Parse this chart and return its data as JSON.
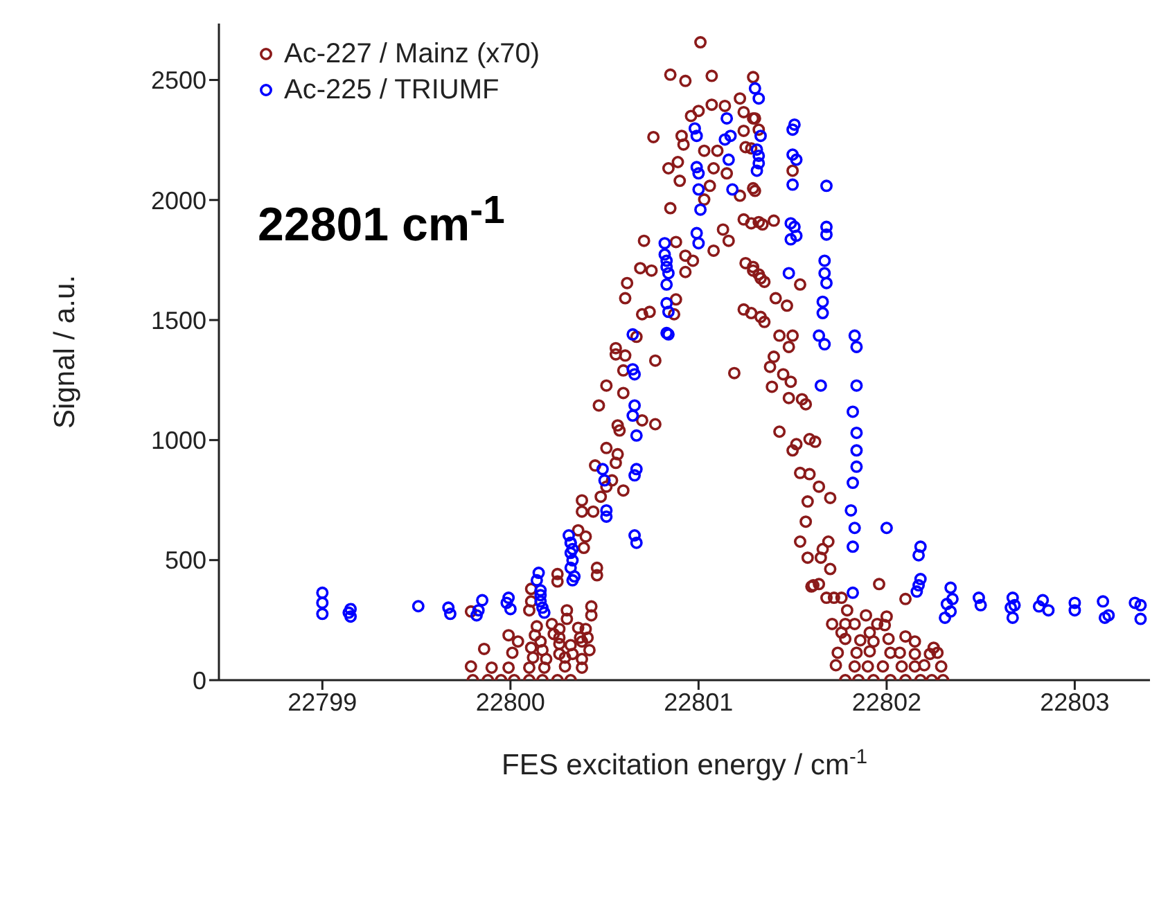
{
  "chart_data": {
    "type": "scatter",
    "xlabel": "FES excitation energy / cm$^{-1}$",
    "ylabel": "Signal / a.u.",
    "annotations": [
      "22801 cm$^{-1}$"
    ],
    "xlim": [
      22798.45,
      22803.4
    ],
    "xticks": [
      22799,
      22800,
      22801,
      22802,
      22803
    ],
    "ylim": [
      0,
      2735
    ],
    "yticks": [
      0,
      500,
      1000,
      1500,
      2000,
      2500
    ],
    "grid": false,
    "legend": "top left",
    "marker": "circle",
    "series": [
      {
        "name": "Ac-227 / Mainz (x70)",
        "color": "#8b1a1a",
        "x": [
          22801.01,
          22800.85,
          22800.93,
          22801.07,
          22801.29,
          22800.96,
          22801.0,
          22801.07,
          22801.14,
          22801.22,
          22801.24,
          22801.29,
          22800.76,
          22800.91,
          22800.92,
          22801.03,
          22801.1,
          22801.24,
          22801.25,
          22800.84,
          22800.89,
          22800.9,
          22801.08,
          22801.15,
          22801.06,
          22801.03,
          22801.22,
          22801.29,
          22800.85,
          22801.24,
          22801.32,
          22801.13,
          22801.16,
          22801.08,
          22800.71,
          22800.88,
          22800.69,
          22800.75,
          22800.93,
          22800.97,
          22800.93,
          22801.25,
          22801.29,
          22801.33,
          22800.62,
          22800.61,
          22800.88,
          22800.7,
          22800.74,
          22800.87,
          22801.24,
          22801.33,
          22800.67,
          22800.56,
          22800.56,
          22800.61,
          22800.77,
          22800.6,
          22801.19,
          22800.51,
          22800.6,
          22800.47,
          22800.57,
          22800.58,
          22800.7,
          22800.77,
          22800.51,
          22800.57,
          22800.56,
          22800.45,
          22800.54,
          22800.51,
          22800.6,
          22800.48,
          22800.38,
          22800.38,
          22800.44,
          22800.36,
          22800.4,
          22800.39,
          22800.46,
          22800.25,
          22800.11,
          22800.11,
          22800.3,
          22800.43,
          22800.14,
          22800.22,
          22800.26,
          22800.36,
          22800.4,
          22800.16,
          22800.26,
          22800.32,
          22800.38,
          22800.11,
          22800.12,
          22800.19,
          22800.29,
          22800.38,
          22799.79,
          22799.79,
          22799.86,
          22799.9,
          22799.99,
          22799.99,
          22800.04,
          22800.01,
          22800.1,
          22800.13,
          22800.17,
          22800.25,
          22800.3,
          22800.23,
          22800.26,
          22800.26,
          22800.33,
          22800.29,
          22800.38,
          22800.42,
          22800.37,
          22800.41,
          22800.43,
          22800.46,
          22800.1,
          22800.18,
          22799.8,
          22799.88,
          22799.95,
          22800.02,
          22800.1,
          22800.17,
          22800.25,
          22800.32,
          22801.3,
          22801.32,
          22801.28,
          22801.5,
          22801.3,
          22801.28,
          22801.34,
          22801.4,
          22801.29,
          22801.32,
          22801.35,
          22801.54,
          22801.41,
          22801.47,
          22801.28,
          22801.35,
          22801.43,
          22801.5,
          22801.48,
          22801.4,
          22801.38,
          22801.45,
          22801.49,
          22801.39,
          22801.48,
          22801.55,
          22801.57,
          22801.43,
          22801.52,
          22801.5,
          22801.59,
          22801.62,
          22801.54,
          22801.59,
          22801.64,
          22801.58,
          22801.7,
          22801.57,
          22801.54,
          22801.69,
          22801.66,
          22801.65,
          22801.58,
          22801.7,
          22801.6,
          22801.64,
          22801.96,
          22801.68,
          22801.72,
          22801.76,
          22802.1,
          22801.61,
          22801.79,
          22801.89,
          22802.0,
          22801.71,
          22801.78,
          22801.83,
          22801.95,
          22801.99,
          22801.76,
          22801.91,
          22801.78,
          22801.86,
          22801.93,
          22802.01,
          22802.1,
          22802.15,
          22802.25,
          22801.74,
          22801.84,
          22801.91,
          22802.02,
          22802.07,
          22802.15,
          22802.23,
          22802.27,
          22801.73,
          22801.83,
          22801.9,
          22801.98,
          22802.08,
          22802.15,
          22802.2,
          22802.29,
          22801.78,
          22801.85,
          22801.93,
          22802.02,
          22802.1,
          22802.18,
          22802.24,
          22802.3
        ],
        "values": [
          2657,
          2522,
          2496,
          2517,
          2512,
          2350,
          2371,
          2397,
          2392,
          2423,
          2366,
          2340,
          2262,
          2267,
          2231,
          2205,
          2205,
          2288,
          2220,
          2132,
          2158,
          2080,
          2132,
          2111,
          2059,
          2002,
          2018,
          2049,
          1966,
          1919,
          1908,
          1877,
          1830,
          1789,
          1830,
          1825,
          1716,
          1706,
          1768,
          1747,
          1700,
          1737,
          1706,
          1674,
          1654,
          1591,
          1586,
          1524,
          1534,
          1524,
          1544,
          1513,
          1430,
          1383,
          1357,
          1352,
          1331,
          1290,
          1279,
          1227,
          1196,
          1144,
          1061,
          1040,
          1082,
          1066,
          967,
          941,
          905,
          894,
          832,
          806,
          790,
          764,
          749,
          702,
          702,
          624,
          598,
          551,
          468,
          442,
          380,
          328,
          291,
          307,
          224,
          234,
          213,
          218,
          213,
          161,
          151,
          146,
          161,
          135,
          94,
          88,
          94,
          88,
          57,
          286,
          130,
          52,
          52,
          187,
          161,
          114,
          291,
          187,
          125,
          411,
          255,
          192,
          177,
          109,
          109,
          57,
          52,
          125,
          177,
          177,
          270,
          437,
          52,
          52,
          0,
          0,
          0,
          0,
          0,
          0,
          0,
          0,
          2340,
          2293,
          2215,
          2122,
          2038,
          1903,
          1898,
          1914,
          1721,
          1690,
          1659,
          1648,
          1591,
          1560,
          1529,
          1492,
          1435,
          1435,
          1388,
          1347,
          1305,
          1274,
          1243,
          1222,
          1175,
          1170,
          1149,
          1035,
          983,
          957,
          1004,
          993,
          863,
          858,
          806,
          744,
          759,
          660,
          577,
          577,
          546,
          510,
          510,
          463,
          390,
          400,
          400,
          343,
          343,
          343,
          338,
          395,
          291,
          270,
          265,
          234,
          234,
          234,
          234,
          229,
          198,
          198,
          172,
          166,
          161,
          172,
          182,
          161,
          135,
          114,
          114,
          120,
          114,
          114,
          109,
          109,
          114,
          62,
          57,
          57,
          57,
          57,
          57,
          62,
          57,
          0,
          0,
          0,
          0,
          0,
          0,
          0,
          0
        ]
      },
      {
        "name": "Ac-225 / TRIUMF",
        "color": "#0000ff",
        "x": [
          22799.0,
          22799.0,
          22799.0,
          22799.15,
          22799.15,
          22799.14,
          22799.51,
          22799.67,
          22799.68,
          22799.85,
          22799.83,
          22799.82,
          22799.99,
          22800.0,
          22799.98,
          22800.14,
          22800.16,
          22800.16,
          22800.17,
          22800.18,
          22800.32,
          22800.33,
          22800.33,
          22800.34,
          22800.33,
          22800.51,
          22800.67,
          22800.15,
          22800.16,
          22800.31,
          22800.32,
          22800.32,
          22800.32,
          22800.49,
          22800.5,
          22800.51,
          22800.65,
          22800.65,
          22800.66,
          22800.66,
          22800.65,
          22800.67,
          22800.67,
          22800.66,
          22800.66,
          22800.82,
          22800.82,
          22800.83,
          22800.83,
          22800.84,
          22800.83,
          22800.83,
          22800.84,
          22800.83,
          22800.84,
          22800.98,
          22800.99,
          22800.99,
          22801.0,
          22801.0,
          22801.01,
          22800.99,
          22801.0,
          22801.15,
          22801.14,
          22801.17,
          22801.16,
          22801.18,
          22801.3,
          22801.32,
          22801.33,
          22801.31,
          22801.32,
          22801.32,
          22801.31,
          22801.5,
          22801.51,
          22801.5,
          22801.52,
          22801.5,
          22801.49,
          22801.51,
          22801.52,
          22801.49,
          22801.48,
          22801.68,
          22801.68,
          22801.68,
          22801.67,
          22801.67,
          22801.68,
          22801.66,
          22801.66,
          22801.64,
          22801.67,
          22801.65,
          22801.83,
          22801.84,
          22801.84,
          22801.82,
          22801.84,
          22801.84,
          22801.84,
          22801.82,
          22801.81,
          22801.83,
          22801.82,
          22801.82,
          22802.0,
          22802.17,
          22802.18,
          22802.18,
          22802.17,
          22802.16,
          22802.34,
          22802.32,
          22802.35,
          22802.34,
          22802.31,
          22802.49,
          22802.5,
          22802.67,
          22802.68,
          22802.67,
          22802.66,
          22802.83,
          22802.86,
          22802.81,
          22803.0,
          22803.0,
          22803.15,
          22803.16,
          22803.18,
          22803.32,
          22803.35,
          22803.35
        ],
        "values": [
          364,
          322,
          276,
          296,
          265,
          281,
          308,
          302,
          276,
          333,
          291,
          270,
          343,
          296,
          322,
          416,
          374,
          354,
          302,
          281,
          572,
          546,
          499,
          432,
          416,
          681,
          572,
          447,
          328,
          603,
          572,
          530,
          468,
          879,
          832,
          707,
          1440,
          1295,
          1274,
          1144,
          1102,
          1019,
          879,
          853,
          603,
          1820,
          1773,
          1747,
          1721,
          1695,
          1648,
          1570,
          1534,
          1446,
          1440,
          2298,
          2267,
          2137,
          2111,
          2044,
          1960,
          1862,
          1820,
          2340,
          2252,
          2267,
          2168,
          2044,
          2465,
          2423,
          2267,
          2210,
          2184,
          2153,
          2122,
          2293,
          2314,
          2189,
          2168,
          2064,
          1903,
          1888,
          1851,
          1836,
          1695,
          2059,
          1888,
          1856,
          1747,
          1695,
          1654,
          1576,
          1529,
          1435,
          1399,
          1227,
          1435,
          1388,
          1227,
          1118,
          1030,
          957,
          889,
          822,
          707,
          634,
          556,
          364,
          634,
          520,
          556,
          421,
          395,
          369,
          385,
          317,
          338,
          286,
          260,
          343,
          312,
          343,
          312,
          260,
          302,
          333,
          291,
          307,
          322,
          291,
          328,
          260,
          270,
          322,
          312,
          255
        ]
      }
    ]
  }
}
